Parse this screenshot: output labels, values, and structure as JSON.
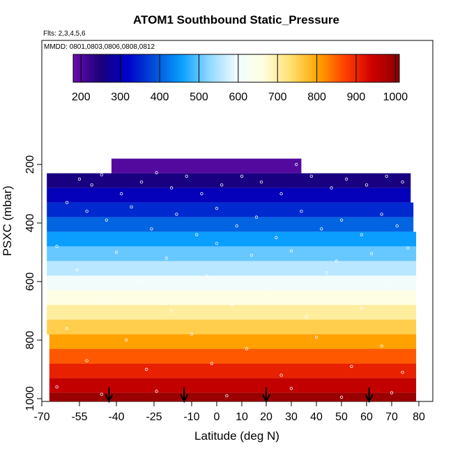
{
  "title": "ATOM1 Southbound Static_Pressure",
  "flights_note": "Flts: 2,3,4,5,6",
  "dates_note": "MMDD: 0801,0803,0806,0808,0812",
  "chart_data": {
    "type": "heatmap",
    "title": "ATOM1 Southbound Static_Pressure",
    "xlabel": "Latitude (deg N)",
    "ylabel": "PSXC (mbar)",
    "xlim": [
      -70,
      85
    ],
    "ylim": [
      1010,
      100
    ],
    "y_reversed": true,
    "x_ticks": [
      -70,
      -55,
      -40,
      -25,
      -10,
      0,
      10,
      20,
      30,
      40,
      50,
      60,
      70,
      80
    ],
    "x_tick_labels": [
      "-70",
      "-55",
      "-40",
      "-25",
      "-10",
      "0",
      "10",
      "20",
      "30",
      "40",
      "50",
      "60",
      "70",
      "80"
    ],
    "y_ticks": [
      200,
      400,
      600,
      800,
      1000
    ],
    "y_tick_labels": [
      "200",
      "400",
      "600",
      "800",
      "1000"
    ],
    "colorbar": {
      "range": [
        180,
        1010
      ],
      "ticks": [
        200,
        300,
        400,
        500,
        600,
        700,
        800,
        900,
        1000
      ],
      "tick_labels": [
        "200",
        "300",
        "400",
        "500",
        "600",
        "700",
        "800",
        "900",
        "1000"
      ],
      "colors": [
        "#6a0dad",
        "#1a007a",
        "#0000c8",
        "#0050d8",
        "#0aa0ff",
        "#8fd8ff",
        "#f0fbff",
        "#ffffe0",
        "#ffe070",
        "#ffa500",
        "#ff4000",
        "#d00000",
        "#8b0000"
      ]
    },
    "rows": [
      {
        "p_top": 180,
        "p_bot": 230,
        "lat_min": -42,
        "lat_max": 34,
        "value": 200
      },
      {
        "p_top": 230,
        "p_bot": 280,
        "lat_min": -68,
        "lat_max": 77,
        "value": 255
      },
      {
        "p_top": 280,
        "p_bot": 330,
        "lat_min": -68,
        "lat_max": 77,
        "value": 305
      },
      {
        "p_top": 330,
        "p_bot": 380,
        "lat_min": -68,
        "lat_max": 78,
        "value": 355
      },
      {
        "p_top": 380,
        "p_bot": 430,
        "lat_min": -68,
        "lat_max": 78,
        "value": 405
      },
      {
        "p_top": 430,
        "p_bot": 480,
        "lat_min": -68,
        "lat_max": 79,
        "value": 455
      },
      {
        "p_top": 480,
        "p_bot": 530,
        "lat_min": -68,
        "lat_max": 79,
        "value": 505
      },
      {
        "p_top": 530,
        "p_bot": 580,
        "lat_min": -68,
        "lat_max": 79,
        "value": 555
      },
      {
        "p_top": 580,
        "p_bot": 630,
        "lat_min": -68,
        "lat_max": 79,
        "value": 605
      },
      {
        "p_top": 630,
        "p_bot": 680,
        "lat_min": -68,
        "lat_max": 79,
        "value": 655
      },
      {
        "p_top": 680,
        "p_bot": 730,
        "lat_min": -68,
        "lat_max": 79,
        "value": 705
      },
      {
        "p_top": 730,
        "p_bot": 780,
        "lat_min": -68,
        "lat_max": 79,
        "value": 755
      },
      {
        "p_top": 780,
        "p_bot": 830,
        "lat_min": -67,
        "lat_max": 79,
        "value": 805
      },
      {
        "p_top": 830,
        "p_bot": 880,
        "lat_min": -67,
        "lat_max": 79,
        "value": 855
      },
      {
        "p_top": 880,
        "p_bot": 930,
        "lat_min": -67,
        "lat_max": 79,
        "value": 905
      },
      {
        "p_top": 930,
        "p_bot": 980,
        "lat_min": -67,
        "lat_max": 79,
        "value": 955
      },
      {
        "p_top": 980,
        "p_bot": 1010,
        "lat_min": -67,
        "lat_max": 79,
        "value": 995
      }
    ],
    "arrows_lat": [
      -43,
      -13,
      20,
      61
    ],
    "sample_points": [
      {
        "lat": -62,
        "p": 225
      },
      {
        "lat": -55,
        "p": 250
      },
      {
        "lat": -50,
        "p": 270
      },
      {
        "lat": -46,
        "p": 235
      },
      {
        "lat": -38,
        "p": 300
      },
      {
        "lat": -30,
        "p": 260
      },
      {
        "lat": -24,
        "p": 228
      },
      {
        "lat": -18,
        "p": 280
      },
      {
        "lat": -12,
        "p": 240
      },
      {
        "lat": -6,
        "p": 300
      },
      {
        "lat": 2,
        "p": 270
      },
      {
        "lat": 10,
        "p": 240
      },
      {
        "lat": 18,
        "p": 260
      },
      {
        "lat": 26,
        "p": 300
      },
      {
        "lat": 32,
        "p": 200
      },
      {
        "lat": 38,
        "p": 240
      },
      {
        "lat": 46,
        "p": 280
      },
      {
        "lat": 52,
        "p": 250
      },
      {
        "lat": 60,
        "p": 270
      },
      {
        "lat": 68,
        "p": 240
      },
      {
        "lat": 74,
        "p": 260
      },
      {
        "lat": -60,
        "p": 330
      },
      {
        "lat": -52,
        "p": 360
      },
      {
        "lat": -44,
        "p": 390
      },
      {
        "lat": -34,
        "p": 345
      },
      {
        "lat": -26,
        "p": 420
      },
      {
        "lat": -16,
        "p": 370
      },
      {
        "lat": -8,
        "p": 440
      },
      {
        "lat": 0,
        "p": 350
      },
      {
        "lat": 8,
        "p": 410
      },
      {
        "lat": 16,
        "p": 380
      },
      {
        "lat": 24,
        "p": 450
      },
      {
        "lat": 34,
        "p": 360
      },
      {
        "lat": 42,
        "p": 420
      },
      {
        "lat": 50,
        "p": 390
      },
      {
        "lat": 58,
        "p": 440
      },
      {
        "lat": 66,
        "p": 370
      },
      {
        "lat": 72,
        "p": 410
      },
      {
        "lat": -64,
        "p": 480
      },
      {
        "lat": -40,
        "p": 500
      },
      {
        "lat": -20,
        "p": 520
      },
      {
        "lat": 0,
        "p": 470
      },
      {
        "lat": 14,
        "p": 510
      },
      {
        "lat": 30,
        "p": 495
      },
      {
        "lat": 48,
        "p": 530
      },
      {
        "lat": 62,
        "p": 505
      },
      {
        "lat": 76,
        "p": 485
      },
      {
        "lat": -56,
        "p": 560
      },
      {
        "lat": -30,
        "p": 600
      },
      {
        "lat": -4,
        "p": 580
      },
      {
        "lat": 22,
        "p": 620
      },
      {
        "lat": 44,
        "p": 570
      },
      {
        "lat": 70,
        "p": 610
      },
      {
        "lat": -48,
        "p": 660
      },
      {
        "lat": -18,
        "p": 700
      },
      {
        "lat": 6,
        "p": 680
      },
      {
        "lat": 36,
        "p": 720
      },
      {
        "lat": 58,
        "p": 690
      },
      {
        "lat": -60,
        "p": 760
      },
      {
        "lat": -36,
        "p": 800
      },
      {
        "lat": -10,
        "p": 780
      },
      {
        "lat": 12,
        "p": 830
      },
      {
        "lat": 40,
        "p": 790
      },
      {
        "lat": 66,
        "p": 820
      },
      {
        "lat": -52,
        "p": 870
      },
      {
        "lat": -28,
        "p": 900
      },
      {
        "lat": -2,
        "p": 880
      },
      {
        "lat": 26,
        "p": 920
      },
      {
        "lat": 54,
        "p": 890
      },
      {
        "lat": 74,
        "p": 910
      },
      {
        "lat": -64,
        "p": 960
      },
      {
        "lat": -46,
        "p": 985
      },
      {
        "lat": -24,
        "p": 975
      },
      {
        "lat": 4,
        "p": 990
      },
      {
        "lat": 30,
        "p": 965
      },
      {
        "lat": 50,
        "p": 995
      },
      {
        "lat": 70,
        "p": 980
      }
    ]
  }
}
